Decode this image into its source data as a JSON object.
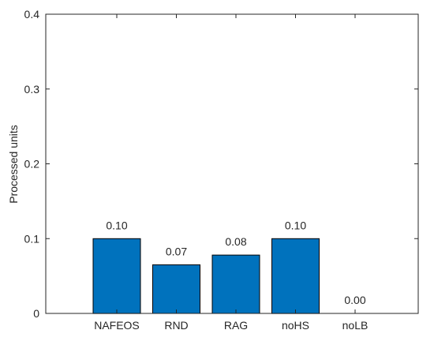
{
  "chart_data": {
    "type": "bar",
    "categories": [
      "NAFEOS",
      "RND",
      "RAG",
      "noHS",
      "noLB"
    ],
    "values": [
      0.1,
      0.065,
      0.078,
      0.1,
      0.0
    ],
    "data_labels": [
      "0.10",
      "0.07",
      "0.08",
      "0.10",
      "0.00"
    ],
    "title": "",
    "xlabel": "",
    "ylabel": "Processed units",
    "ylim": [
      0,
      0.4
    ],
    "yticks": [
      0,
      0.1,
      0.2,
      0.3,
      0.4
    ],
    "ytick_labels": [
      "0",
      "0.1",
      "0.2",
      "0.3",
      "0.4"
    ],
    "grid": false,
    "legend": "none",
    "colors": {
      "bar": "#0072BD",
      "bar_edge": "#000000",
      "axis": "#262626",
      "text": "#262626"
    }
  }
}
